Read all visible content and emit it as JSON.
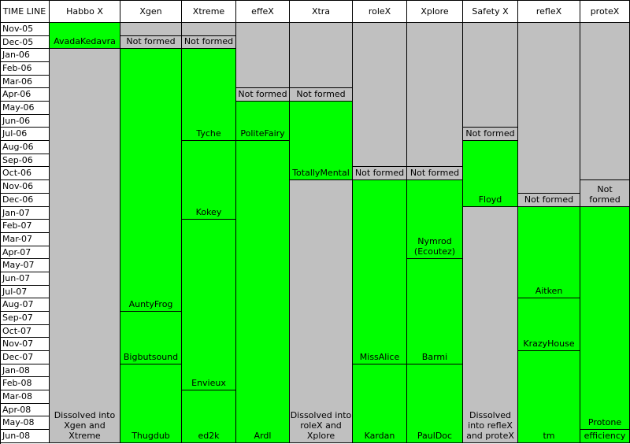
{
  "header": {
    "timeline": "TIME LINE",
    "teams": [
      "Habbo X",
      "Xgen",
      "Xtreme",
      "effeX",
      "Xtra",
      "roleX",
      "Xplore",
      "Safety X",
      "refleX",
      "proteX"
    ]
  },
  "months": [
    "Nov-05",
    "Dec-05",
    "Jan-06",
    "Feb-06",
    "Mar-06",
    "Apr-06",
    "May-06",
    "Jun-06",
    "Jul-06",
    "Aug-06",
    "Sep-06",
    "Oct-06",
    "Nov-06",
    "Dec-06",
    "Jan-07",
    "Feb-07",
    "Mar-07",
    "Apr-07",
    "May-07",
    "Jun-07",
    "Jul-07",
    "Aug-07",
    "Sep-07",
    "Oct-07",
    "Nov-07",
    "Dec-07",
    "Jan-08",
    "Feb-08",
    "Mar-08",
    "Apr-08",
    "May-08",
    "Jun-08"
  ],
  "colors": {
    "active": "#00ff00",
    "inactive": "#c0c0c0",
    "empty": "#ffffff"
  },
  "columns": [
    {
      "team": "Habbo X",
      "blocks": [
        {
          "start": 0,
          "end": 1,
          "state": "active",
          "label": "AvadaKedavra"
        },
        {
          "start": 2,
          "end": 31,
          "state": "inactive",
          "label": "Dissolved into Xgen and Xtreme"
        }
      ]
    },
    {
      "team": "Xgen",
      "blocks": [
        {
          "start": 0,
          "end": 0,
          "state": "inactive",
          "label": ""
        },
        {
          "start": 1,
          "end": 1,
          "state": "inactive",
          "label": "Not formed"
        },
        {
          "start": 2,
          "end": 21,
          "state": "active",
          "label": "AuntyFrog"
        },
        {
          "start": 22,
          "end": 25,
          "state": "active",
          "label": "Bigbutsound"
        },
        {
          "start": 26,
          "end": 31,
          "state": "active",
          "label": "Thugdub"
        }
      ]
    },
    {
      "team": "Xtreme",
      "blocks": [
        {
          "start": 0,
          "end": 0,
          "state": "inactive",
          "label": ""
        },
        {
          "start": 1,
          "end": 1,
          "state": "inactive",
          "label": "Not formed"
        },
        {
          "start": 2,
          "end": 8,
          "state": "active",
          "label": "Tyche"
        },
        {
          "start": 9,
          "end": 14,
          "state": "active",
          "label": "Kokey"
        },
        {
          "start": 15,
          "end": 27,
          "state": "active",
          "label": "Envieux"
        },
        {
          "start": 28,
          "end": 31,
          "state": "active",
          "label": "ed2k"
        }
      ]
    },
    {
      "team": "effeX",
      "blocks": [
        {
          "start": 0,
          "end": 4,
          "state": "inactive",
          "label": ""
        },
        {
          "start": 5,
          "end": 5,
          "state": "inactive",
          "label": "Not formed"
        },
        {
          "start": 6,
          "end": 8,
          "state": "active",
          "label": "PoliteFairy"
        },
        {
          "start": 9,
          "end": 31,
          "state": "active",
          "label": "Ardl"
        }
      ]
    },
    {
      "team": "Xtra",
      "blocks": [
        {
          "start": 0,
          "end": 4,
          "state": "inactive",
          "label": ""
        },
        {
          "start": 5,
          "end": 5,
          "state": "inactive",
          "label": "Not formed"
        },
        {
          "start": 6,
          "end": 11,
          "state": "active",
          "label": "TotallyMental"
        },
        {
          "start": 12,
          "end": 31,
          "state": "inactive",
          "label": "Dissolved into roleX and Xplore"
        }
      ]
    },
    {
      "team": "roleX",
      "blocks": [
        {
          "start": 0,
          "end": 10,
          "state": "inactive",
          "label": ""
        },
        {
          "start": 11,
          "end": 11,
          "state": "inactive",
          "label": "Not formed"
        },
        {
          "start": 12,
          "end": 25,
          "state": "active",
          "label": "MissAlice"
        },
        {
          "start": 26,
          "end": 31,
          "state": "active",
          "label": "Kardan"
        }
      ]
    },
    {
      "team": "Xplore",
      "blocks": [
        {
          "start": 0,
          "end": 10,
          "state": "inactive",
          "label": ""
        },
        {
          "start": 11,
          "end": 11,
          "state": "inactive",
          "label": "Not formed"
        },
        {
          "start": 12,
          "end": 17,
          "state": "active",
          "label": "Nymrod (Ecoutez)"
        },
        {
          "start": 18,
          "end": 25,
          "state": "active",
          "label": "Barmi"
        },
        {
          "start": 26,
          "end": 31,
          "state": "active",
          "label": "PaulDoc"
        }
      ]
    },
    {
      "team": "Safety X",
      "blocks": [
        {
          "start": 0,
          "end": 7,
          "state": "inactive",
          "label": ""
        },
        {
          "start": 8,
          "end": 8,
          "state": "inactive",
          "label": "Not formed"
        },
        {
          "start": 9,
          "end": 13,
          "state": "active",
          "label": "Floyd"
        },
        {
          "start": 14,
          "end": 31,
          "state": "inactive",
          "label": "Dissolved into refleX and proteX"
        }
      ]
    },
    {
      "team": "refleX",
      "blocks": [
        {
          "start": 0,
          "end": 12,
          "state": "inactive",
          "label": ""
        },
        {
          "start": 13,
          "end": 13,
          "state": "inactive",
          "label": "Not formed"
        },
        {
          "start": 14,
          "end": 20,
          "state": "active",
          "label": "Aitken"
        },
        {
          "start": 21,
          "end": 24,
          "state": "active",
          "label": "KrazyHouse"
        },
        {
          "start": 25,
          "end": 31,
          "state": "active",
          "label": "tm"
        }
      ]
    },
    {
      "team": "proteX",
      "blocks": [
        {
          "start": 0,
          "end": 11,
          "state": "inactive",
          "label": ""
        },
        {
          "start": 12,
          "end": 13,
          "state": "inactive",
          "label": "Not formed"
        },
        {
          "start": 14,
          "end": 30,
          "state": "active",
          "label": "Protone"
        },
        {
          "start": 31,
          "end": 31,
          "state": "active",
          "label": "efficiency"
        }
      ]
    }
  ]
}
